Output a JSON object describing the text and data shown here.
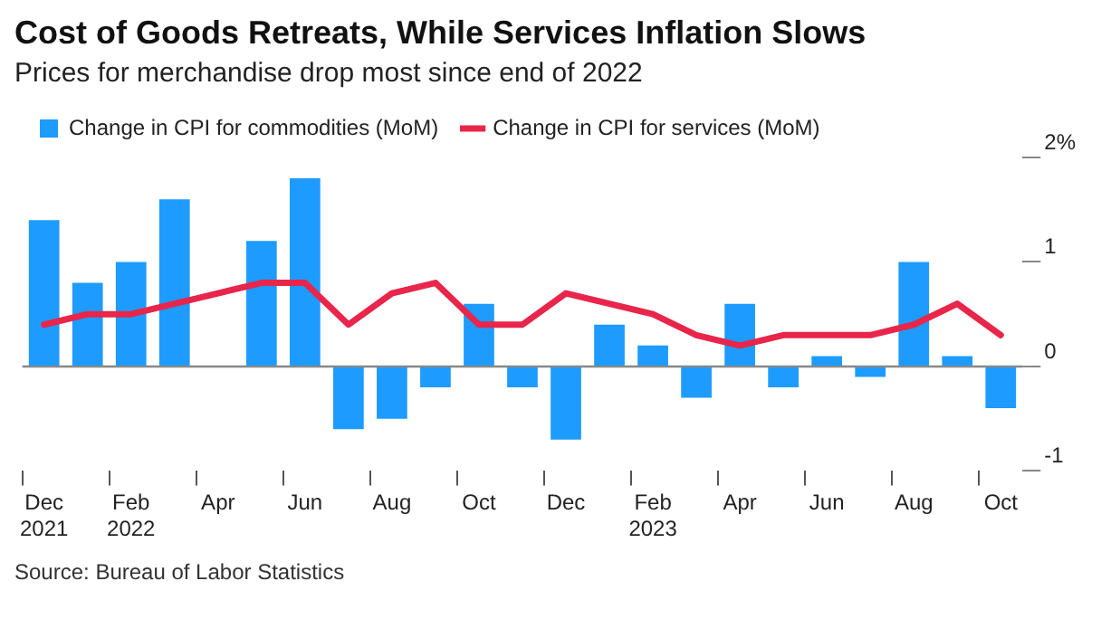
{
  "chart_data": {
    "type": "bar",
    "title": "Cost of Goods Retreats, While Services Inflation Slows",
    "subtitle": "Prices for merchandise drop most since end of 2022",
    "categories": [
      "Dec 2021",
      null,
      "Feb 2022",
      null,
      "Apr",
      null,
      "Jun",
      null,
      "Aug",
      null,
      "Oct",
      null,
      "Dec",
      null,
      "Feb 2023",
      null,
      "Apr",
      null,
      "Jun",
      null,
      "Aug",
      null,
      "Oct"
    ],
    "series": [
      {
        "name": "Change in CPI for commodities (MoM)",
        "color": "#1e9bff",
        "values": [
          1.4,
          0.8,
          1.0,
          1.6,
          0.0,
          1.2,
          1.8,
          -0.6,
          -0.5,
          -0.2,
          0.6,
          -0.2,
          -0.7,
          0.4,
          0.2,
          -0.3,
          0.6,
          -0.2,
          0.1,
          -0.1,
          1.0,
          0.1,
          -0.4
        ]
      },
      {
        "name": "Change in CPI for services (MoM)",
        "type": "line",
        "color": "#e8254a",
        "values": [
          0.4,
          0.5,
          0.5,
          0.6,
          0.7,
          0.8,
          0.8,
          0.4,
          0.7,
          0.8,
          0.4,
          0.4,
          0.7,
          0.6,
          0.5,
          0.3,
          0.2,
          0.3,
          0.3,
          0.3,
          0.4,
          0.6,
          0.3
        ]
      }
    ],
    "ylim": [
      -1,
      2
    ],
    "yticks": [
      {
        "value": 2,
        "label": "2%"
      },
      1,
      0,
      -1
    ],
    "ref_lines": [
      {
        "axis": "y",
        "value": 0,
        "color": "#888888"
      }
    ],
    "legend": "top left",
    "grid": false,
    "marker": "none",
    "line_style": "solid",
    "annotations": [
      "Source: Bureau of Labor Statistics"
    ]
  }
}
